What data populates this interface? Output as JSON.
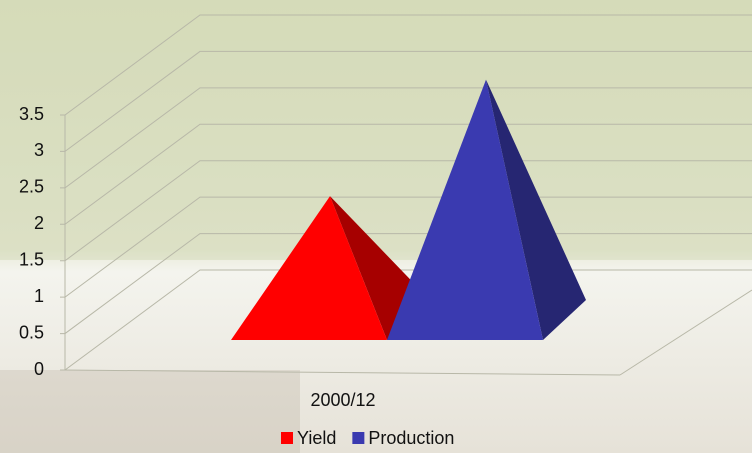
{
  "chart_data": {
    "type": "pyramid",
    "categories": [
      "2000/12"
    ],
    "series": [
      {
        "name": "Yield",
        "color": "#ff0000",
        "values": [
          1.7
        ]
      },
      {
        "name": "Production",
        "color": "#3a3ab0",
        "values": [
          3.3
        ]
      }
    ],
    "ylim": [
      0,
      3.5
    ],
    "yticks": [
      0,
      0.5,
      1,
      1.5,
      2,
      2.5,
      3,
      3.5
    ],
    "grid": true,
    "legend": "bottom"
  }
}
